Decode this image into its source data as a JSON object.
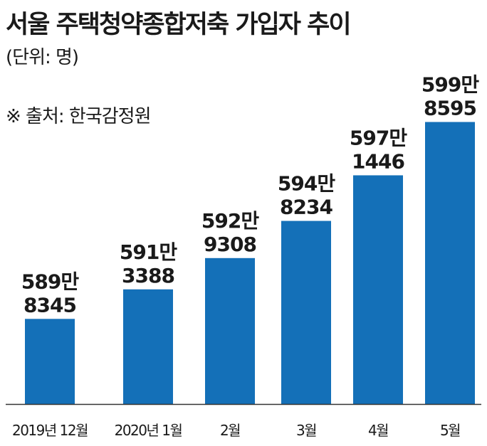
{
  "header": {
    "title": "서울 주택청약종합저축 가입자 추이",
    "unit": "(단위: 명)",
    "source": "※ 출처: 한국감정원"
  },
  "colors": {
    "bar": "#1470b8",
    "axis": "#333333"
  },
  "chart_data": {
    "type": "bar",
    "title": "서울 주택청약종합저축 가입자 추이",
    "unit": "(단위: 명)",
    "source": "※ 출처: 한국감정원",
    "categories": [
      "2019년 12월",
      "2020년 1월",
      "2월",
      "3월",
      "4월",
      "5월"
    ],
    "values": [
      5898345,
      5913388,
      5929308,
      5948234,
      5971446,
      5998595
    ],
    "data_labels": [
      [
        "589만",
        "8345"
      ],
      [
        "591만",
        "3388"
      ],
      [
        "592만",
        "9308"
      ],
      [
        "594만",
        "8234"
      ],
      [
        "597만",
        "1446"
      ],
      [
        "599만",
        "8595"
      ]
    ],
    "ylim": [
      5855000,
      6010000
    ],
    "grid": false,
    "legend": "none"
  }
}
